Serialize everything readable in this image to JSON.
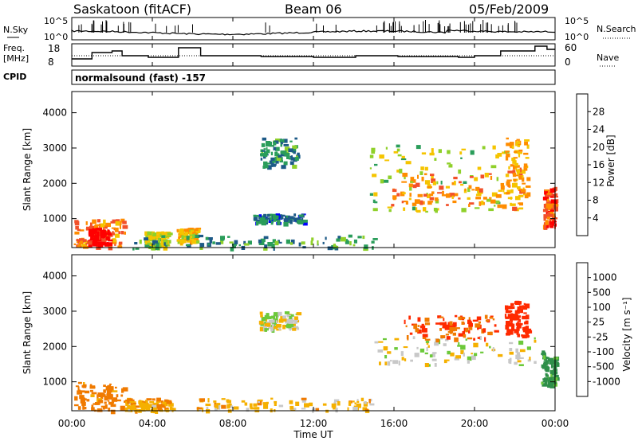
{
  "header": {
    "title": "Saskatoon (fitACF)",
    "beam": "Beam 06",
    "date": "05/Feb/2009"
  },
  "left_labels": {
    "nsky": "N.Sky",
    "freq_line1": "Freq.",
    "freq_line2": "[MHz]",
    "cpid": "CPID"
  },
  "right_labels": {
    "nsearch": "N.Search",
    "nave": "Nave"
  },
  "cpid_text": "normalsound (fast) -157",
  "noise_axis": {
    "top_left": "10^5",
    "bottom_left": "10^0",
    "top_right": "10^5",
    "bottom_right": "10^0"
  },
  "freq_axis": {
    "ticks_left": [
      "18",
      "8"
    ],
    "ticks_right": [
      "60",
      "0"
    ]
  },
  "range_ticks": [
    "4000",
    "3000",
    "2000",
    "1000"
  ],
  "time_ticks": [
    "00:00",
    "04:00",
    "08:00",
    "12:00",
    "16:00",
    "20:00",
    "00:00"
  ],
  "xlabel": "Time UT",
  "ylabel": "Slant Range [km]",
  "power_colorbar": {
    "label": "Power [dB]",
    "ticks": [
      "28",
      "24",
      "20",
      "16",
      "12",
      "8",
      "4"
    ],
    "colors": [
      "#ff0000",
      "#f2502a",
      "#ff8c00",
      "#f5c400",
      "#8fd02a",
      "#2a9d5a",
      "#1d5a87",
      "#0000ff"
    ]
  },
  "velocity_colorbar": {
    "label": "Velocity [m s⁻¹]",
    "ticks": [
      "1000",
      "500",
      "100",
      "25",
      "-25",
      "-100",
      "-500",
      "-1000"
    ],
    "colors": [
      "#2a3fb0",
      "#2f6f88",
      "#2f8f4a",
      "#6cc93a",
      "#c8c8c8",
      "#f5b000",
      "#f07a00",
      "#ff2a00",
      "#ff0000"
    ]
  },
  "chart_data": [
    {
      "type": "heatmap",
      "panel": "power",
      "x": [
        "00:00",
        "04:00",
        "08:00",
        "12:00",
        "16:00",
        "20:00",
        "00:00"
      ],
      "xlabel": "Time UT",
      "ylabel": "Slant Range [km]",
      "ylim": [
        180,
        4600
      ],
      "zlabel": "Power [dB]",
      "zlim": [
        0,
        30
      ],
      "patches": [
        {
          "t0": 0.1,
          "t1": 2.6,
          "r0": 200,
          "r1": 1000,
          "value": 22
        },
        {
          "t0": 0.8,
          "t1": 1.8,
          "r0": 300,
          "r1": 750,
          "value": 29
        },
        {
          "t0": 3.6,
          "t1": 4.8,
          "r0": 200,
          "r1": 650,
          "value": 14
        },
        {
          "t0": 5.2,
          "t1": 6.2,
          "r0": 350,
          "r1": 750,
          "value": 18
        },
        {
          "t0": 9.3,
          "t1": 11.2,
          "r0": 2500,
          "r1": 3300,
          "value": 8
        },
        {
          "t0": 9.0,
          "t1": 11.5,
          "r0": 900,
          "r1": 1150,
          "value": 7
        },
        {
          "t0": 14.8,
          "t1": 21.5,
          "r0": 1200,
          "r1": 3100,
          "value": 14
        },
        {
          "t0": 15.8,
          "t1": 21.5,
          "r0": 1400,
          "r1": 2300,
          "value": 21
        },
        {
          "t0": 21.5,
          "t1": 22.6,
          "r0": 1300,
          "r1": 3300,
          "value": 19
        },
        {
          "t0": 23.4,
          "t1": 24.0,
          "r0": 800,
          "r1": 1900,
          "value": 24
        },
        {
          "t0": 3.0,
          "t1": 15.0,
          "r0": 180,
          "r1": 550,
          "value": 9
        }
      ]
    },
    {
      "type": "heatmap",
      "panel": "velocity",
      "x": [
        "00:00",
        "04:00",
        "08:00",
        "12:00",
        "16:00",
        "20:00",
        "00:00"
      ],
      "xlabel": "Time UT",
      "ylabel": "Slant Range [km]",
      "ylim": [
        180,
        4600
      ],
      "zlabel": "Velocity [m s⁻¹]",
      "zlim": [
        -1000,
        1000
      ],
      "patches": [
        {
          "t0": 0.1,
          "t1": 2.6,
          "r0": 200,
          "r1": 1000,
          "value": -150
        },
        {
          "t0": 2.6,
          "t1": 5.0,
          "r0": 200,
          "r1": 550,
          "value": -80
        },
        {
          "t0": 9.3,
          "t1": 11.2,
          "r0": 2500,
          "r1": 3000,
          "value": 0
        },
        {
          "t0": 15.0,
          "t1": 23.0,
          "r0": 1500,
          "r1": 2300,
          "value": 0
        },
        {
          "t0": 16.5,
          "t1": 21.0,
          "r0": 2200,
          "r1": 2900,
          "value": -500
        },
        {
          "t0": 21.5,
          "t1": 22.6,
          "r0": 2300,
          "r1": 3300,
          "value": -600
        },
        {
          "t0": 23.3,
          "t1": 24.0,
          "r0": 900,
          "r1": 1900,
          "value": 150
        },
        {
          "t0": 6.0,
          "t1": 15.0,
          "r0": 180,
          "r1": 550,
          "value": -60
        }
      ]
    }
  ]
}
